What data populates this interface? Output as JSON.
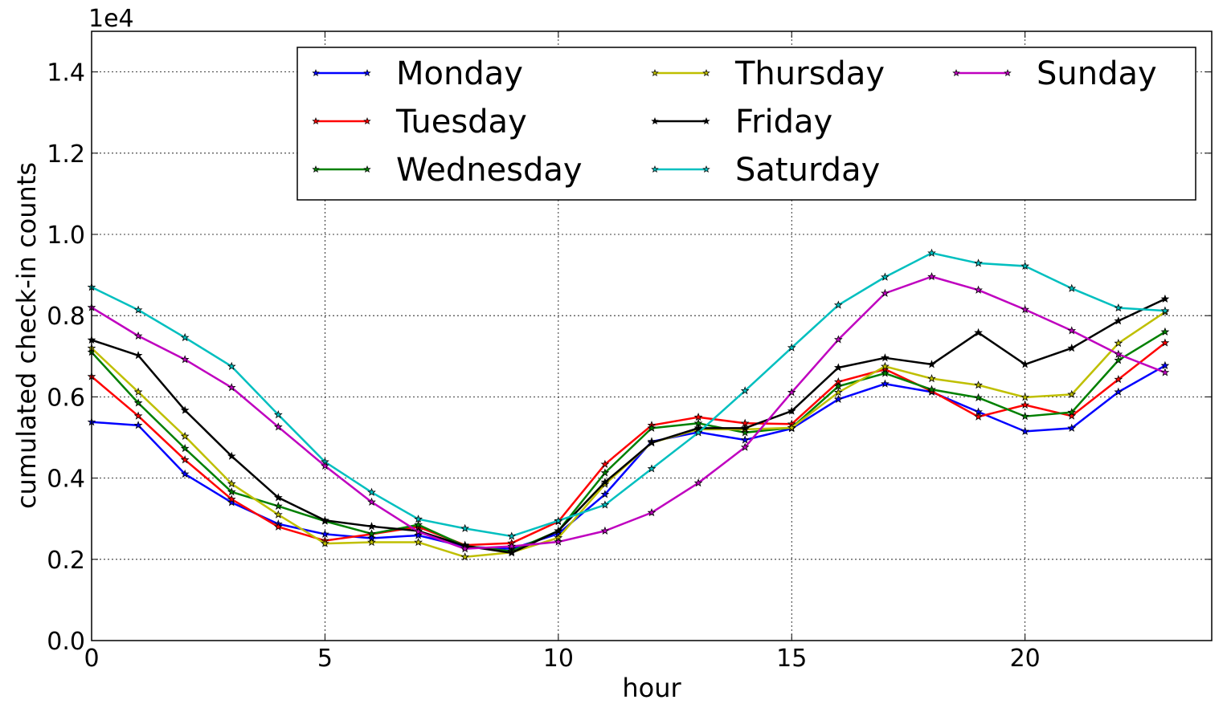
{
  "chart_data": {
    "type": "line",
    "title": "",
    "xlabel": "hour",
    "ylabel": "cumulated check-in counts",
    "y_scale_label": "1e4",
    "xlim": [
      0,
      24
    ],
    "ylim": [
      0,
      1.5
    ],
    "xticks": [
      0,
      5,
      10,
      15,
      20
    ],
    "xtick_labels": [
      "0",
      "5",
      "10",
      "15",
      "20"
    ],
    "yticks": [
      0,
      0.2,
      0.4,
      0.6,
      0.8,
      1.0,
      1.2,
      1.4
    ],
    "ytick_labels": [
      "0.0",
      "0.2",
      "0.4",
      "0.6",
      "0.8",
      "1.0",
      "1.2",
      "1.4"
    ],
    "grid": true,
    "legend_position": "top-right",
    "marker": "star",
    "x": [
      0,
      1,
      2,
      3,
      4,
      5,
      6,
      7,
      8,
      9,
      10,
      11,
      12,
      13,
      14,
      15,
      16,
      17,
      18,
      19,
      20,
      21,
      22,
      23
    ],
    "series": [
      {
        "name": "Monday",
        "color": "#0000ff",
        "values": [
          0.538,
          0.53,
          0.41,
          0.34,
          0.287,
          0.262,
          0.252,
          0.259,
          0.231,
          0.226,
          0.263,
          0.36,
          0.49,
          0.513,
          0.494,
          0.522,
          0.594,
          0.632,
          0.612,
          0.563,
          0.515,
          0.523,
          0.612,
          0.677
        ]
      },
      {
        "name": "Tuesday",
        "color": "#ff0000",
        "values": [
          0.65,
          0.553,
          0.445,
          0.348,
          0.28,
          0.246,
          0.262,
          0.28,
          0.235,
          0.24,
          0.293,
          0.434,
          0.53,
          0.55,
          0.535,
          0.533,
          0.637,
          0.668,
          0.614,
          0.551,
          0.58,
          0.553,
          0.643,
          0.733
        ]
      },
      {
        "name": "Wednesday",
        "color": "#008000",
        "values": [
          0.71,
          0.585,
          0.473,
          0.366,
          0.331,
          0.294,
          0.263,
          0.285,
          0.233,
          0.22,
          0.27,
          0.413,
          0.523,
          0.535,
          0.512,
          0.524,
          0.626,
          0.658,
          0.618,
          0.598,
          0.552,
          0.562,
          0.69,
          0.76
        ]
      },
      {
        "name": "Thursday",
        "color": "#bfbf00",
        "values": [
          0.72,
          0.612,
          0.503,
          0.386,
          0.31,
          0.239,
          0.242,
          0.242,
          0.206,
          0.217,
          0.253,
          0.385,
          0.487,
          0.52,
          0.52,
          0.524,
          0.611,
          0.675,
          0.645,
          0.629,
          0.599,
          0.606,
          0.732,
          0.809
        ]
      },
      {
        "name": "Friday",
        "color": "#000000",
        "values": [
          0.74,
          0.702,
          0.567,
          0.454,
          0.352,
          0.296,
          0.281,
          0.27,
          0.233,
          0.216,
          0.27,
          0.39,
          0.487,
          0.523,
          0.523,
          0.565,
          0.672,
          0.696,
          0.68,
          0.758,
          0.68,
          0.72,
          0.787,
          0.841
        ]
      },
      {
        "name": "Saturday",
        "color": "#00bfbf",
        "values": [
          0.87,
          0.814,
          0.746,
          0.675,
          0.556,
          0.44,
          0.365,
          0.299,
          0.276,
          0.257,
          0.295,
          0.334,
          0.423,
          0.512,
          0.615,
          0.721,
          0.826,
          0.895,
          0.954,
          0.929,
          0.922,
          0.867,
          0.819,
          0.812
        ]
      },
      {
        "name": "Sunday",
        "color": "#bf00bf",
        "values": [
          0.82,
          0.75,
          0.692,
          0.623,
          0.526,
          0.43,
          0.341,
          0.268,
          0.226,
          0.232,
          0.243,
          0.27,
          0.315,
          0.388,
          0.476,
          0.611,
          0.741,
          0.855,
          0.896,
          0.863,
          0.815,
          0.763,
          0.705,
          0.66
        ]
      }
    ]
  }
}
